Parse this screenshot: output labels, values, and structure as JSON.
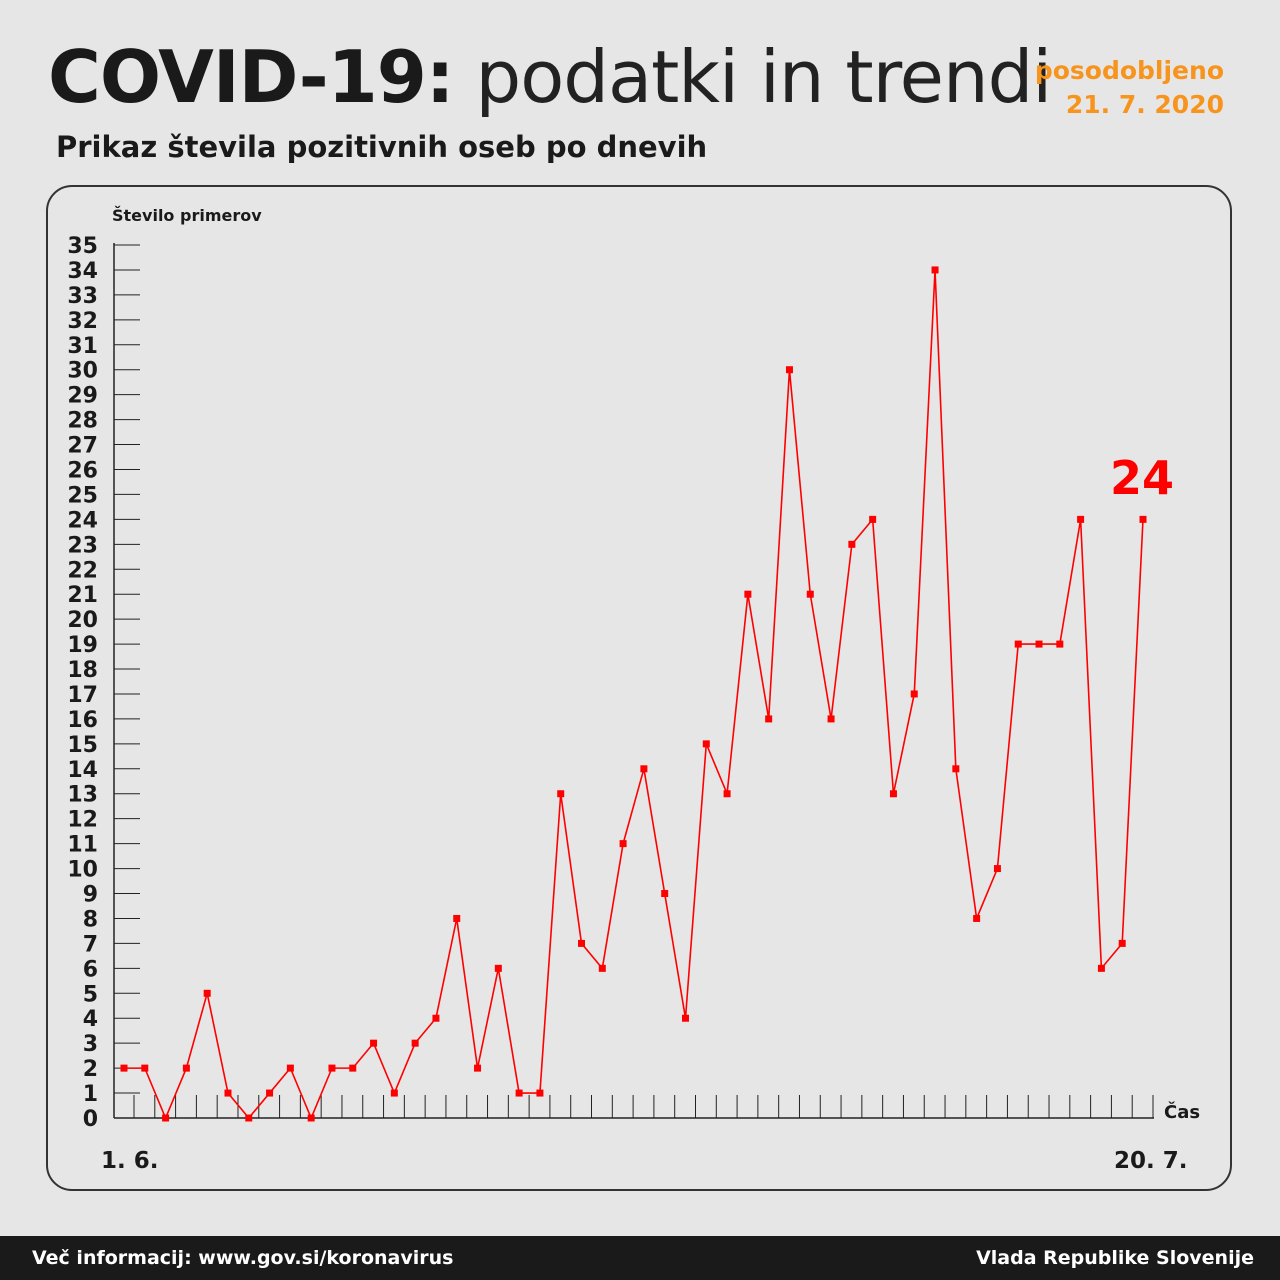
{
  "header": {
    "title_bold": "COVID-19:",
    "title_light": "podatki in trendi",
    "updated_label": "posodobljeno",
    "updated_date": "21. 7. 2020",
    "subtitle": "Prikaz števila pozitivnih oseb po dnevih"
  },
  "footer": {
    "info": "Več informacij: www.gov.si/koronavirus",
    "org": "Vlada Republike Slovenije"
  },
  "colors": {
    "line": "#ff0000",
    "accent": "#f7941d"
  },
  "chart_data": {
    "type": "line",
    "ylabel": "Število primerov",
    "xlabel": "Čas",
    "ylim": [
      0,
      35
    ],
    "x_start_label": "1. 6.",
    "x_end_label": "20. 7.",
    "last_value_label": "24",
    "series": [
      {
        "name": "Pozitivne osebe",
        "values": [
          2,
          2,
          0,
          2,
          5,
          1,
          0,
          1,
          2,
          0,
          2,
          2,
          3,
          1,
          3,
          4,
          8,
          2,
          6,
          1,
          1,
          13,
          7,
          6,
          11,
          14,
          9,
          4,
          15,
          13,
          21,
          16,
          30,
          21,
          16,
          23,
          24,
          13,
          17,
          34,
          14,
          8,
          10,
          19,
          19,
          19,
          24,
          6,
          7,
          24
        ]
      }
    ]
  }
}
